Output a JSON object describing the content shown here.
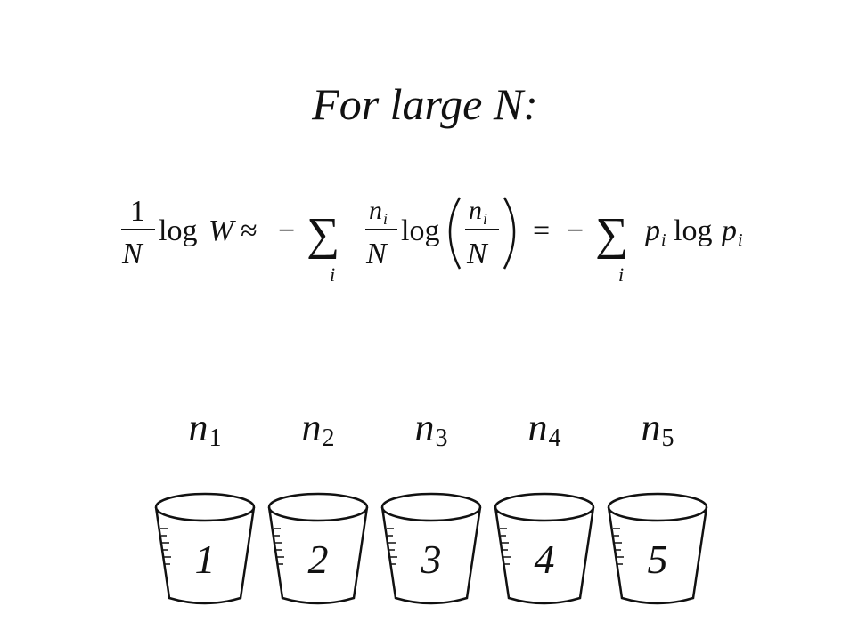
{
  "title": "For large N:",
  "formula": {
    "frac_num": "1",
    "frac_den": "N",
    "log1": "log",
    "W": "W",
    "approx": "≈",
    "minus1": "−",
    "sum1": "∑",
    "sub_i1": "i",
    "n_i_num": "n",
    "n_i_sub": "i",
    "N_den": "N",
    "log2": "log",
    "paren_num": "n",
    "paren_num_sub": "i",
    "paren_den": "N",
    "equals": "=",
    "minus2": "−",
    "sum2": "∑",
    "sub_i2": "i",
    "p1": "p",
    "p1_sub": "i",
    "log3": "log",
    "p2": "p",
    "p2_sub": "i"
  },
  "bins": [
    {
      "label_var": "n",
      "label_sub": "1",
      "number": "1"
    },
    {
      "label_var": "n",
      "label_sub": "2",
      "number": "2"
    },
    {
      "label_var": "n",
      "label_sub": "3",
      "number": "3"
    },
    {
      "label_var": "n",
      "label_sub": "4",
      "number": "4"
    },
    {
      "label_var": "n",
      "label_sub": "5",
      "number": "5"
    }
  ]
}
